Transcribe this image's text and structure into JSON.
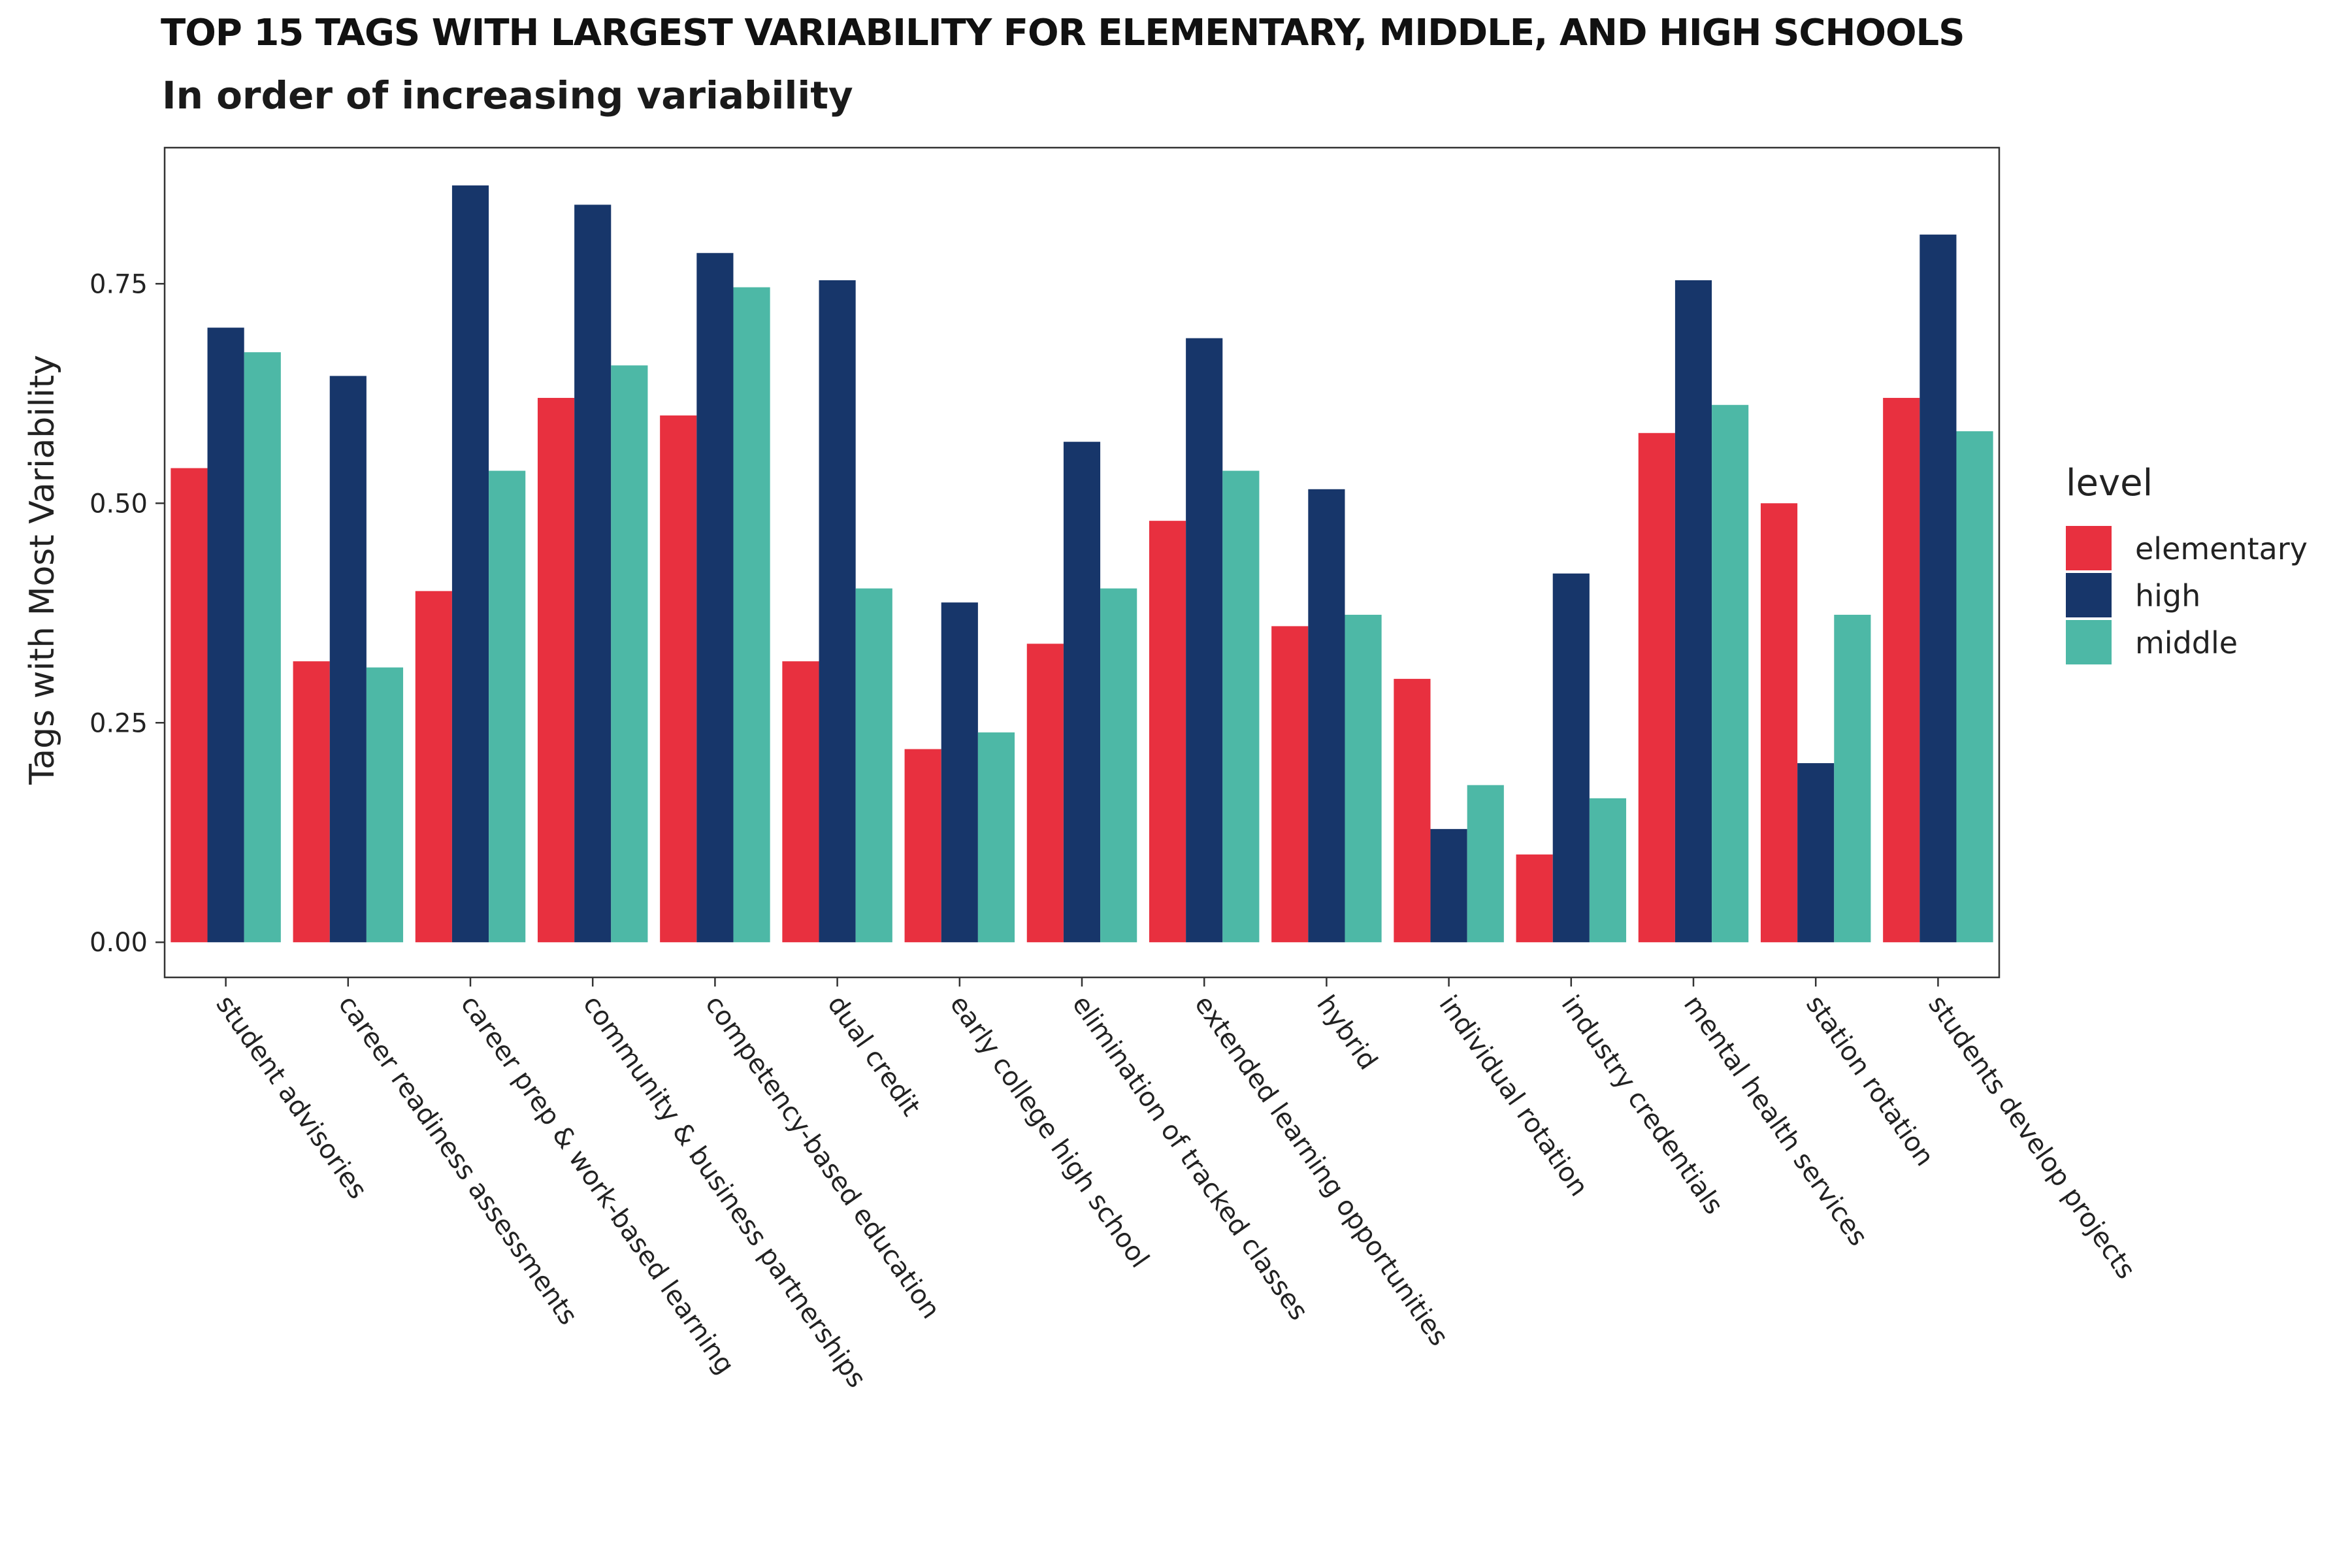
{
  "chart_data": {
    "type": "bar",
    "title": "TOP 15 TAGS WITH LARGEST VARIABILITY FOR ELEMENTARY, MIDDLE, AND HIGH SCHOOLS",
    "subtitle": "In order of increasing variability",
    "ylabel": "Tags with Most Variability",
    "xlabel": "",
    "ylim": [
      -0.04,
      0.905
    ],
    "yticks": [
      0,
      0.25,
      0.5,
      0.75
    ],
    "ytick_labels": [
      "0.00",
      "0.25",
      "0.50",
      "0.75"
    ],
    "grid": false,
    "legend_title": "level",
    "legend_position": "right",
    "categories": [
      "student advisories",
      "career readiness assessments",
      "career prep & work-based learning",
      "community & business partnerships",
      "competency-based education",
      "dual credit",
      "early college high school",
      "elimination of tracked classes",
      "extended learning opportunities",
      "hybrid",
      "individual rotation",
      "industry credentials",
      "mental health services",
      "station rotation",
      "students develop projects"
    ],
    "series": [
      {
        "name": "elementary",
        "color": "#E8303F",
        "values": [
          0.54,
          0.32,
          0.4,
          0.62,
          0.6,
          0.32,
          0.22,
          0.34,
          0.48,
          0.36,
          0.3,
          0.1,
          0.58,
          0.5,
          0.62
        ]
      },
      {
        "name": "high",
        "color": "#17366A",
        "values": [
          0.7,
          0.645,
          0.862,
          0.84,
          0.785,
          0.754,
          0.387,
          0.57,
          0.688,
          0.516,
          0.129,
          0.42,
          0.754,
          0.204,
          0.806
        ]
      },
      {
        "name": "middle",
        "color": "#4DB8A6",
        "values": [
          0.672,
          0.313,
          0.537,
          0.657,
          0.746,
          0.403,
          0.239,
          0.403,
          0.537,
          0.373,
          0.179,
          0.164,
          0.612,
          0.373,
          0.582
        ]
      }
    ]
  }
}
